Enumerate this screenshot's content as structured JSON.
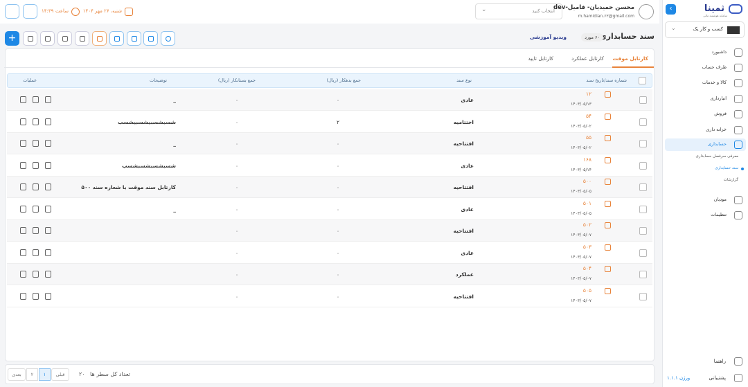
{
  "sidebar": {
    "logo": "ثمینا",
    "logo_subtitle": "سامانه هوشمند مالی",
    "business": "کسب و کار یک",
    "menu": [
      {
        "label": "داشبورد"
      },
      {
        "label": "طرف حساب"
      },
      {
        "label": "کالا و خدمات"
      },
      {
        "label": "انبارداری"
      },
      {
        "label": "فروش"
      },
      {
        "label": "خزانه داری"
      },
      {
        "label": "حسابداری"
      },
      {
        "label": "مودیان"
      },
      {
        "label": "تنظیمات"
      }
    ],
    "submenu": [
      "معرفی سرفصل حسابداری",
      "سند حسابداری",
      "گزارشات"
    ],
    "help": "راهنما",
    "support": "پشتیبانی",
    "version": "ورژن ۱.۱.۱"
  },
  "header": {
    "user_name": "محسن حمیدیان- فامیل-dev",
    "user_email": "m.hamidian.۶۳@gmail.com",
    "select_placeholder": "انتخاب کنید",
    "date": "شنبه، ۲۶ مهر ۱۴۰۴",
    "time_label": "ساعت",
    "time": "۱۴:۳۹"
  },
  "page": {
    "title": "سند حسابداری",
    "count_badge": "۶۰ مورد",
    "video": "ویدیو آموزشی",
    "tabs": [
      "کارتابل موقت",
      "کارتابل عملکرد",
      "کارتابل تایید"
    ]
  },
  "table": {
    "headers": [
      "شماره سند/تاریخ سند",
      "نوع سند",
      "جمع بدهکار (ریال)",
      "جمع بستانکار (ریال)",
      "توضیحات",
      "عملیات"
    ],
    "rows": [
      {
        "number": "۱۲",
        "date": "۱۴۰۳/۰۵/۱۳",
        "type": "عادی",
        "debit": "۰",
        "credit": "۰",
        "description": "_"
      },
      {
        "number": "۵۴",
        "date": "۱۴۰۳/۰۵/۰۲",
        "type": "اختتامیه",
        "debit": "۲",
        "credit": "۰",
        "description": "شسبشسبیشسبیشسب"
      },
      {
        "number": "۵۵",
        "date": "۱۴۰۳/۰۵/۰۲",
        "type": "افتتاحیه",
        "debit": "۰",
        "credit": "۰",
        "description": "_"
      },
      {
        "number": "۱۶۸",
        "date": "۱۴۰۳/۰۵/۱۴",
        "type": "عادی",
        "debit": "۰",
        "credit": "۰",
        "description": "شسبشسبشسبشسب"
      },
      {
        "number": "۵۰۰",
        "date": "۱۴۰۳/۰۵/۰۵",
        "type": "افتتاحیه",
        "debit": "۰",
        "credit": "۰",
        "description": "کارتابل سند موقت با شعاره سند ۵۰۰"
      },
      {
        "number": "۵۰۱",
        "date": "۱۴۰۳/۰۵/۰۵",
        "type": "عادی",
        "debit": "۰",
        "credit": "۰",
        "description": "_"
      },
      {
        "number": "۵۰۲",
        "date": "۱۴۰۳/۰۵/۰۷",
        "type": "افتتاحیه",
        "debit": "۰",
        "credit": "۰"
      },
      {
        "number": "۵۰۳",
        "date": "۱۴۰۳/۰۵/۰۷",
        "type": "عادی",
        "debit": "۰",
        "credit": "۰"
      },
      {
        "number": "۵۰۴",
        "date": "۱۴۰۳/۰۵/۰۷",
        "type": "عملکرد",
        "debit": "۰",
        "credit": "۰"
      },
      {
        "number": "۵۰۵",
        "date": "۱۴۰۳/۰۵/۰۷",
        "type": "افتتاحیه",
        "debit": "۰",
        "credit": "۰"
      }
    ]
  },
  "footer": {
    "total_label": "تعداد کل سطر ها",
    "total": "۲۰",
    "prev": "قبلی",
    "pages": [
      "۱",
      "۲"
    ],
    "next": "بعدی"
  }
}
